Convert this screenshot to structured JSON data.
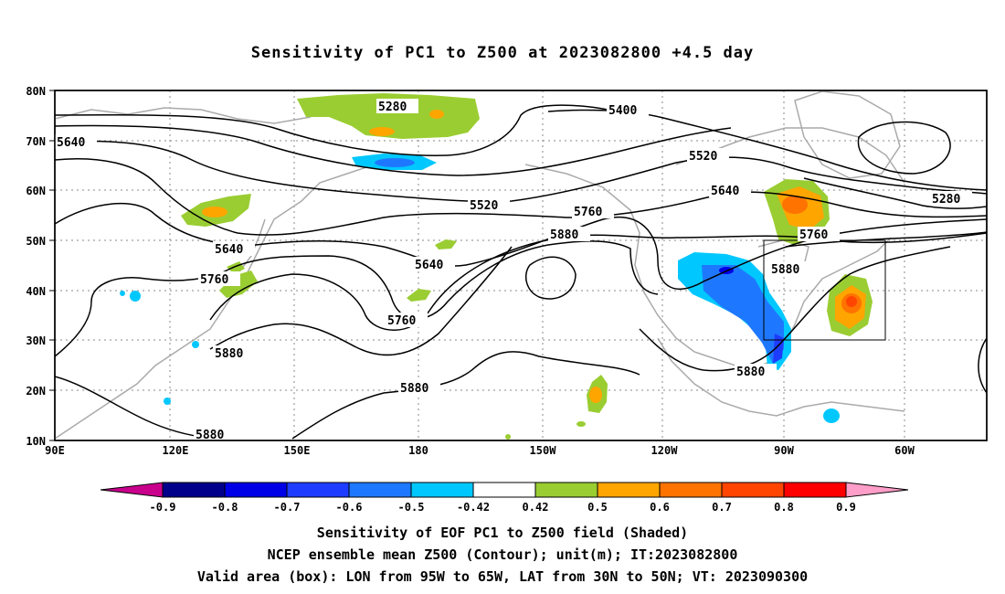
{
  "title": "Sensitivity of PC1 to Z500 at 2023082800 +4.5 day",
  "lat_ticks": [
    "80N",
    "70N",
    "60N",
    "50N",
    "40N",
    "30N",
    "20N",
    "10N"
  ],
  "lon_ticks": [
    "90E",
    "120E",
    "150E",
    "180",
    "150W",
    "120W",
    "90W",
    "60W"
  ],
  "contour_labels": [
    "5280",
    "5400",
    "5520",
    "5640",
    "5760",
    "5880"
  ],
  "colorbar": {
    "labels": [
      "-0.9",
      "-0.8",
      "-0.7",
      "-0.6",
      "-0.5",
      "-0.42",
      "0.42",
      "0.5",
      "0.6",
      "0.7",
      "0.8",
      "0.9"
    ],
    "colors": [
      "#c8008c",
      "#00008b",
      "#0000e6",
      "#1e3cff",
      "#1e78ff",
      "#00c8ff",
      "#ffffff",
      "#9acd32",
      "#ffa500",
      "#ff7300",
      "#ff4500",
      "#ff0000",
      "#ff9ec8"
    ]
  },
  "captions": [
    "Sensitivity of EOF PC1 to Z500 field (Shaded)",
    "NCEP ensemble mean Z500 (Contour); unit(m); IT:2023082800",
    "Valid area (box): LON from 95W to 65W, LAT from 30N to 50N; VT: 2023090300"
  ]
}
